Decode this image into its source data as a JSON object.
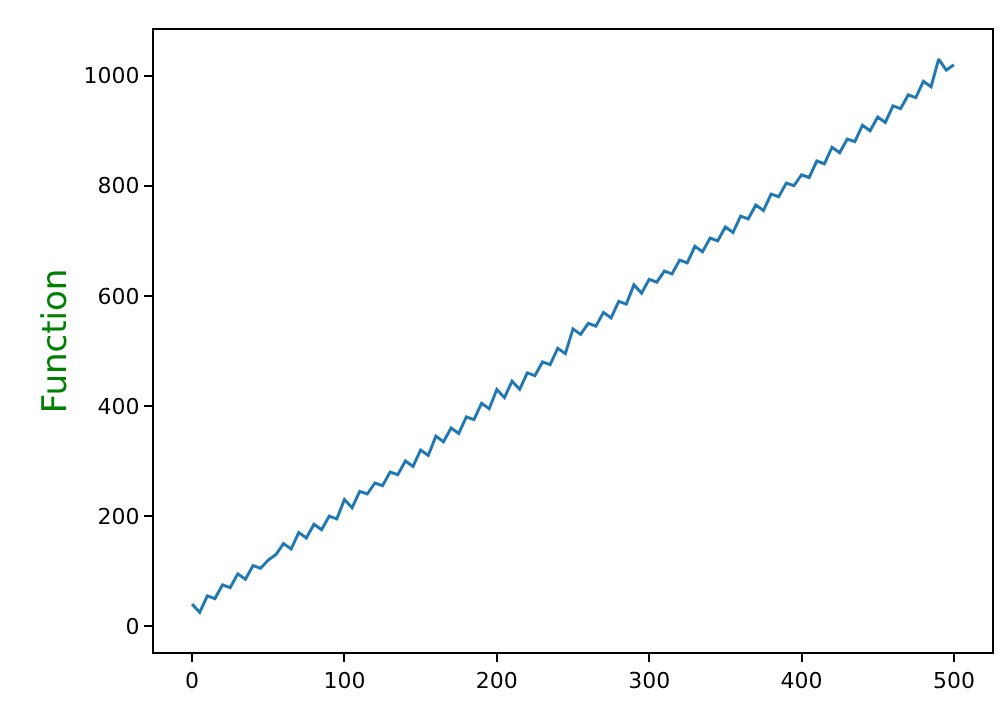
{
  "chart_data": {
    "type": "line",
    "ylabel": "Function",
    "x": [
      0,
      5,
      10,
      15,
      20,
      25,
      30,
      35,
      40,
      45,
      50,
      55,
      60,
      65,
      70,
      75,
      80,
      85,
      90,
      95,
      100,
      105,
      110,
      115,
      120,
      125,
      130,
      135,
      140,
      145,
      150,
      155,
      160,
      165,
      170,
      175,
      180,
      185,
      190,
      195,
      200,
      205,
      210,
      215,
      220,
      225,
      230,
      235,
      240,
      245,
      250,
      255,
      260,
      265,
      270,
      275,
      280,
      285,
      290,
      295,
      300,
      305,
      310,
      315,
      320,
      325,
      330,
      335,
      340,
      345,
      350,
      355,
      360,
      365,
      370,
      375,
      380,
      385,
      390,
      395,
      400,
      405,
      410,
      415,
      420,
      425,
      430,
      435,
      440,
      445,
      450,
      455,
      460,
      465,
      470,
      475,
      480,
      485,
      490,
      495,
      500
    ],
    "series": [
      {
        "color": "#1f77b4",
        "values": [
          40,
          25,
          55,
          50,
          75,
          70,
          95,
          85,
          110,
          105,
          120,
          130,
          150,
          140,
          170,
          160,
          185,
          175,
          200,
          195,
          230,
          215,
          245,
          240,
          260,
          255,
          280,
          275,
          300,
          290,
          320,
          310,
          345,
          335,
          360,
          350,
          380,
          375,
          405,
          395,
          430,
          415,
          445,
          430,
          460,
          455,
          480,
          475,
          505,
          495,
          540,
          530,
          550,
          545,
          570,
          560,
          590,
          585,
          620,
          605,
          630,
          625,
          645,
          640,
          665,
          660,
          690,
          680,
          705,
          700,
          725,
          715,
          745,
          740,
          765,
          755,
          785,
          780,
          805,
          800,
          820,
          815,
          845,
          840,
          870,
          860,
          885,
          880,
          910,
          900,
          925,
          915,
          945,
          940,
          965,
          960,
          990,
          980,
          1030,
          1010,
          1020
        ]
      }
    ],
    "xlim": [
      -25,
      525
    ],
    "xticks": [
      0,
      100,
      200,
      300,
      400,
      500
    ],
    "ylim": [
      -47,
      1083
    ],
    "yticks": [
      0,
      200,
      400,
      600,
      800,
      1000
    ],
    "grid": false
  }
}
